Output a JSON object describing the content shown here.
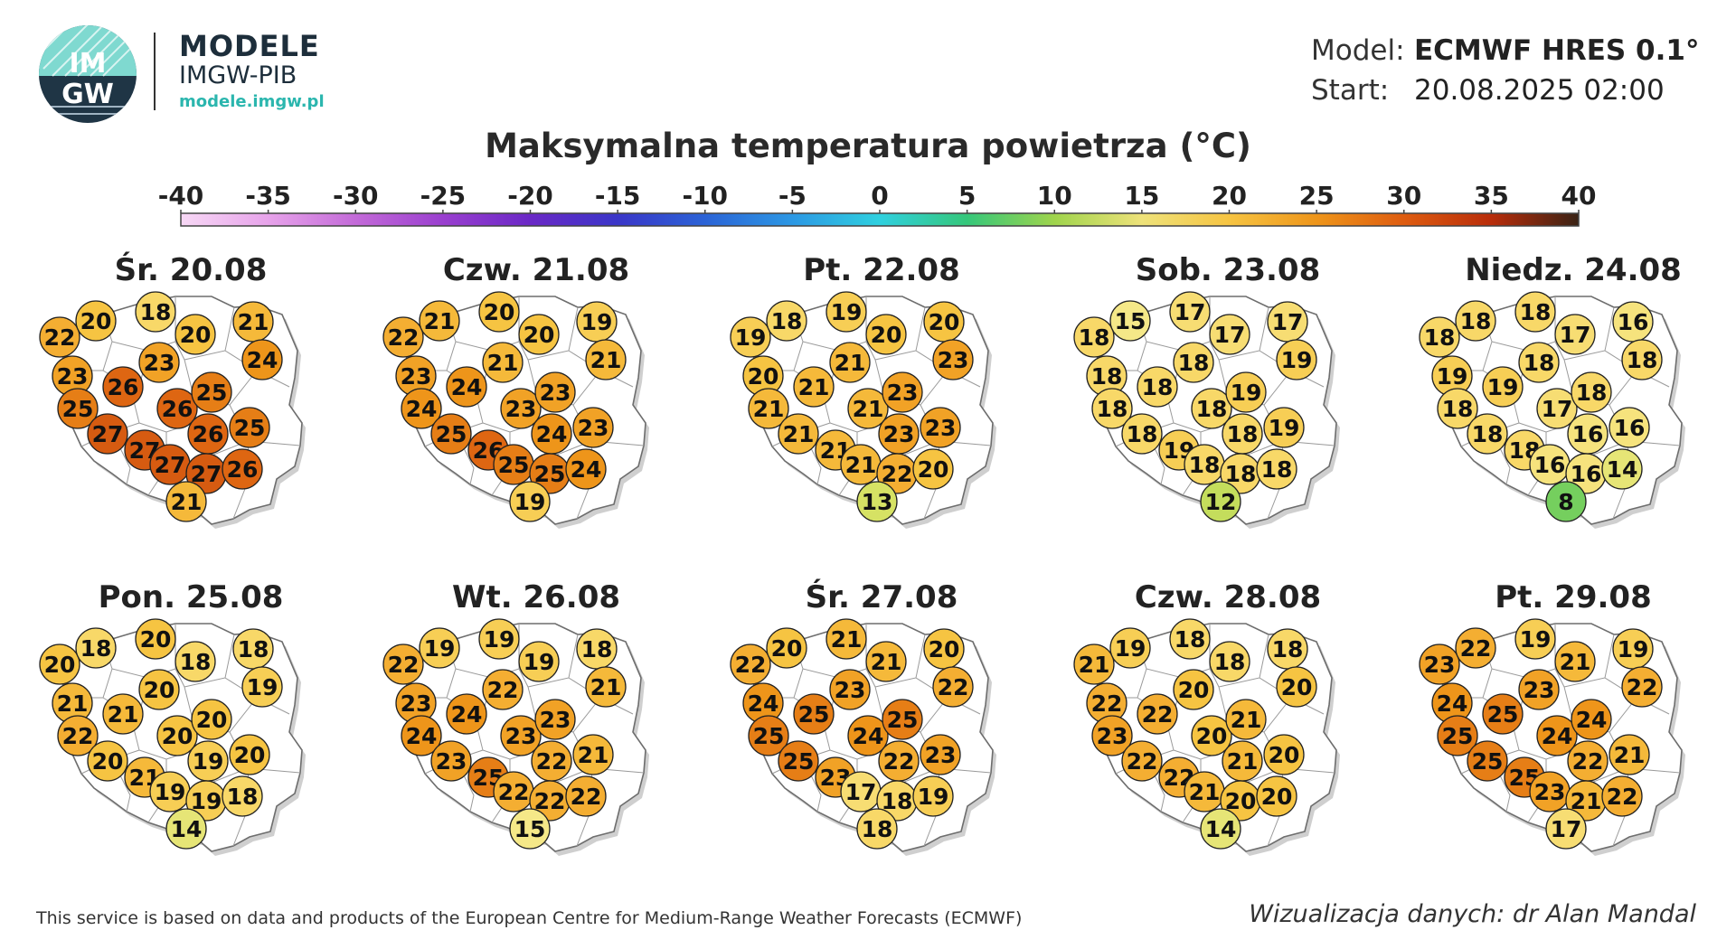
{
  "header": {
    "brand_name": "MODELE",
    "brand_sub": "IMGW-PIB",
    "brand_url": "modele.imgw.pl",
    "logo_text_top": "IM",
    "logo_text_bottom": "GW",
    "model_label": "Model:",
    "model_value": "ECMWF HRES 0.1°",
    "start_label": "Start:",
    "start_value": "20.08.2025 02:00"
  },
  "title": "Maksymalna temperatura powietrza (°C)",
  "colorbar": {
    "ticks": [
      "-40",
      "-35",
      "-30",
      "-25",
      "-20",
      "-15",
      "-10",
      "-5",
      "0",
      "5",
      "10",
      "15",
      "20",
      "25",
      "30",
      "35",
      "40"
    ],
    "colors": [
      "#f7d8f5",
      "#e7a3ea",
      "#c36ad8",
      "#9a3fcf",
      "#6a28c6",
      "#3a36c8",
      "#2b63d6",
      "#2c98e4",
      "#2fd0df",
      "#35c77a",
      "#9fd44c",
      "#eee27a",
      "#f6c442",
      "#ee951a",
      "#de5c10",
      "#b82c0a",
      "#3a2315"
    ]
  },
  "maps": [
    {
      "label": "Śr. 20.08",
      "values": [
        22,
        20,
        18,
        20,
        21,
        24,
        23,
        26,
        23,
        25,
        26,
        25,
        26,
        25,
        27,
        27,
        27,
        27,
        26,
        21
      ]
    },
    {
      "label": "Czw. 21.08",
      "values": [
        22,
        21,
        20,
        20,
        19,
        21,
        23,
        24,
        21,
        24,
        23,
        23,
        24,
        23,
        25,
        26,
        25,
        25,
        24,
        19
      ]
    },
    {
      "label": "Pt. 22.08",
      "values": [
        19,
        18,
        19,
        20,
        20,
        23,
        20,
        21,
        21,
        21,
        21,
        23,
        23,
        23,
        21,
        21,
        21,
        22,
        20,
        13
      ]
    },
    {
      "label": "Sob. 23.08",
      "values": [
        18,
        15,
        17,
        17,
        17,
        19,
        18,
        18,
        18,
        18,
        18,
        19,
        18,
        19,
        18,
        19,
        18,
        18,
        18,
        12
      ]
    },
    {
      "label": "Niedz. 24.08",
      "values": [
        18,
        18,
        18,
        17,
        16,
        18,
        19,
        19,
        18,
        18,
        17,
        18,
        16,
        16,
        18,
        18,
        16,
        16,
        14,
        8
      ]
    },
    {
      "label": "Pon. 25.08",
      "values": [
        20,
        18,
        20,
        18,
        18,
        19,
        21,
        21,
        20,
        22,
        20,
        20,
        19,
        20,
        20,
        21,
        19,
        19,
        18,
        14
      ]
    },
    {
      "label": "Wt. 26.08",
      "values": [
        22,
        19,
        19,
        19,
        18,
        21,
        23,
        24,
        22,
        24,
        23,
        23,
        22,
        21,
        23,
        25,
        22,
        22,
        22,
        15
      ]
    },
    {
      "label": "Śr. 27.08",
      "values": [
        22,
        20,
        21,
        21,
        20,
        22,
        24,
        25,
        23,
        25,
        24,
        25,
        22,
        23,
        25,
        23,
        17,
        18,
        19,
        18
      ]
    },
    {
      "label": "Czw. 28.08",
      "values": [
        21,
        19,
        18,
        18,
        18,
        20,
        22,
        22,
        20,
        23,
        20,
        21,
        21,
        20,
        22,
        22,
        21,
        20,
        20,
        14
      ]
    },
    {
      "label": "Pt. 29.08",
      "values": [
        23,
        22,
        19,
        21,
        19,
        22,
        24,
        25,
        23,
        25,
        24,
        24,
        22,
        21,
        25,
        25,
        23,
        21,
        22,
        17
      ]
    }
  ],
  "footer": {
    "source": "This service is based on data and products of the European Centre for Medium-Range Weather Forecasts (ECMWF)",
    "credit": "Wizualizacja danych: dr Alan Mandal"
  }
}
